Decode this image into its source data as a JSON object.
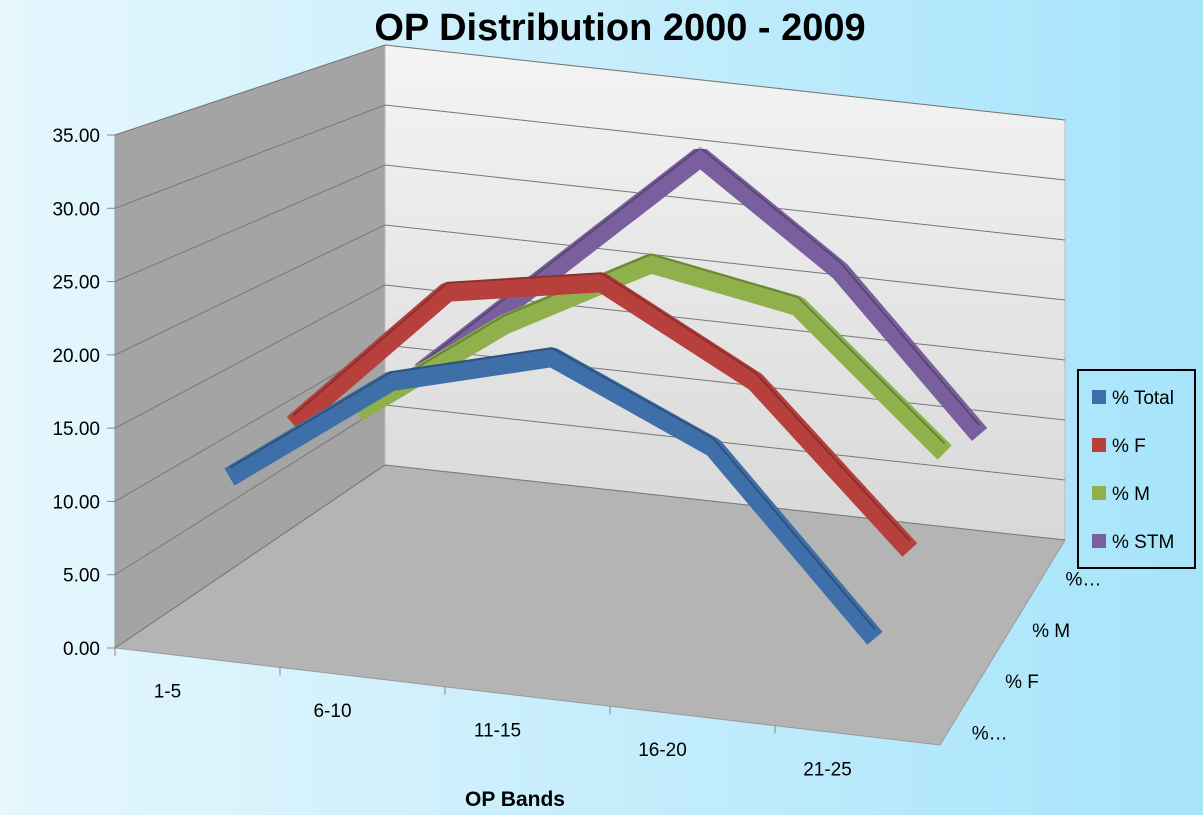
{
  "chart_data": {
    "type": "line3d",
    "title": "OP Distribution 2000 - 2009",
    "x_label": "OP Bands",
    "categories": [
      "1-5",
      "6-10",
      "11-15",
      "16-20",
      "21-25"
    ],
    "depth_labels": [
      "%…",
      "% F",
      "% M",
      "%…"
    ],
    "series": [
      {
        "name": "% Total",
        "color": "#3f6fa8",
        "values": [
          11,
          19,
          22,
          17,
          5
        ]
      },
      {
        "name": "% F",
        "color": "#b8403c",
        "values": [
          12,
          23,
          25,
          19,
          8
        ]
      },
      {
        "name": "% M",
        "color": "#8fb04a",
        "values": [
          10,
          18,
          24,
          22,
          12
        ]
      },
      {
        "name": "% STM",
        "color": "#7a5f9e",
        "values": [
          10,
          20,
          30,
          22,
          10
        ]
      }
    ],
    "ylim": [
      0,
      35
    ],
    "yticks": [
      {
        "value": 0,
        "label": "0.00"
      },
      {
        "value": 5,
        "label": "5.00"
      },
      {
        "value": 10,
        "label": "10.00"
      },
      {
        "value": 15,
        "label": "15.00"
      },
      {
        "value": 20,
        "label": "20.00"
      },
      {
        "value": 25,
        "label": "25.00"
      },
      {
        "value": 30,
        "label": "30.00"
      },
      {
        "value": 35,
        "label": "35.00"
      }
    ],
    "grid": true
  }
}
